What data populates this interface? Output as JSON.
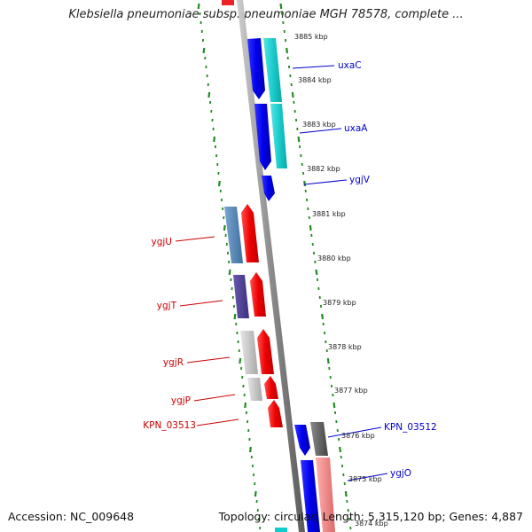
{
  "header": {
    "title": "Klebsiella pneumoniae subsp. pneumoniae MGH 78578, complete ..."
  },
  "footer": {
    "accession": "Accession: NC_009648",
    "summary": "Topology: circular; Length: 5,315,120 bp; Genes: 4,887"
  },
  "colors": {
    "plus_strand_label": "#0000cc",
    "minus_strand_label": "#cc0000",
    "tick_green": "#228b22",
    "backbone": "#888888"
  },
  "ticks": [
    {
      "label": "3885 kbp"
    },
    {
      "label": "3884 kbp"
    },
    {
      "label": "3883 kbp"
    },
    {
      "label": "3882 kbp"
    },
    {
      "label": "3881 kbp"
    },
    {
      "label": "3880 kbp"
    },
    {
      "label": "3879 kbp"
    },
    {
      "label": "3878 kbp"
    },
    {
      "label": "3877 kbp"
    },
    {
      "label": "3876 kbp"
    },
    {
      "label": "3875 kbp"
    },
    {
      "label": "3874 kbp"
    }
  ],
  "genes": [
    {
      "name": "uxaC",
      "strand": "+"
    },
    {
      "name": "uxaA",
      "strand": "+"
    },
    {
      "name": "ygjV",
      "strand": "+"
    },
    {
      "name": "ygjU",
      "strand": "-"
    },
    {
      "name": "ygjT",
      "strand": "-"
    },
    {
      "name": "ygjR",
      "strand": "-"
    },
    {
      "name": "ygjP",
      "strand": "-"
    },
    {
      "name": "KPN_03513",
      "strand": "-"
    },
    {
      "name": "KPN_03512",
      "strand": "+"
    },
    {
      "name": "ygjO",
      "strand": "+"
    }
  ]
}
